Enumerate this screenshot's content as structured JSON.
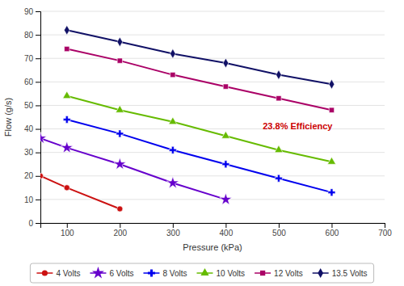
{
  "chart_data": {
    "type": "line",
    "xlabel": "Pressure (kPa)",
    "ylabel": "Flow (g/s)",
    "xlim": [
      50,
      700
    ],
    "ylim": [
      0,
      90
    ],
    "xticks": [
      100,
      200,
      300,
      400,
      500,
      600,
      700
    ],
    "yticks": [
      0,
      10,
      20,
      30,
      40,
      50,
      60,
      70,
      80,
      90
    ],
    "grid": "y",
    "legend": "bottom",
    "annotations": [
      {
        "text": "23.8% Efficiency",
        "x": 470,
        "y": 41,
        "color": "#cc0000"
      }
    ],
    "series": [
      {
        "name": "4 Volts",
        "color": "#cc1111",
        "marker": "circle",
        "x": [
          50,
          100,
          200
        ],
        "values": [
          20,
          15,
          6
        ]
      },
      {
        "name": "6 Volts",
        "color": "#6600cc",
        "marker": "star",
        "x": [
          50,
          100,
          200,
          300,
          400
        ],
        "values": [
          36,
          32,
          25,
          17,
          10
        ]
      },
      {
        "name": "8 Volts",
        "color": "#0000ee",
        "marker": "plus",
        "x": [
          100,
          200,
          300,
          400,
          500,
          600
        ],
        "values": [
          44,
          38,
          31,
          25,
          19,
          13
        ]
      },
      {
        "name": "10 Volts",
        "color": "#66bb00",
        "marker": "triangle",
        "x": [
          100,
          200,
          300,
          400,
          500,
          600
        ],
        "values": [
          54,
          48,
          43,
          37,
          31,
          26
        ]
      },
      {
        "name": "12 Volts",
        "color": "#aa0066",
        "marker": "square",
        "x": [
          100,
          200,
          300,
          400,
          500,
          600
        ],
        "values": [
          74,
          69,
          63,
          58,
          53,
          48
        ]
      },
      {
        "name": "13.5 Volts",
        "color": "#111166",
        "marker": "diamond",
        "x": [
          100,
          200,
          300,
          400,
          500,
          600
        ],
        "values": [
          82,
          77,
          72,
          68,
          63,
          59
        ]
      }
    ]
  }
}
